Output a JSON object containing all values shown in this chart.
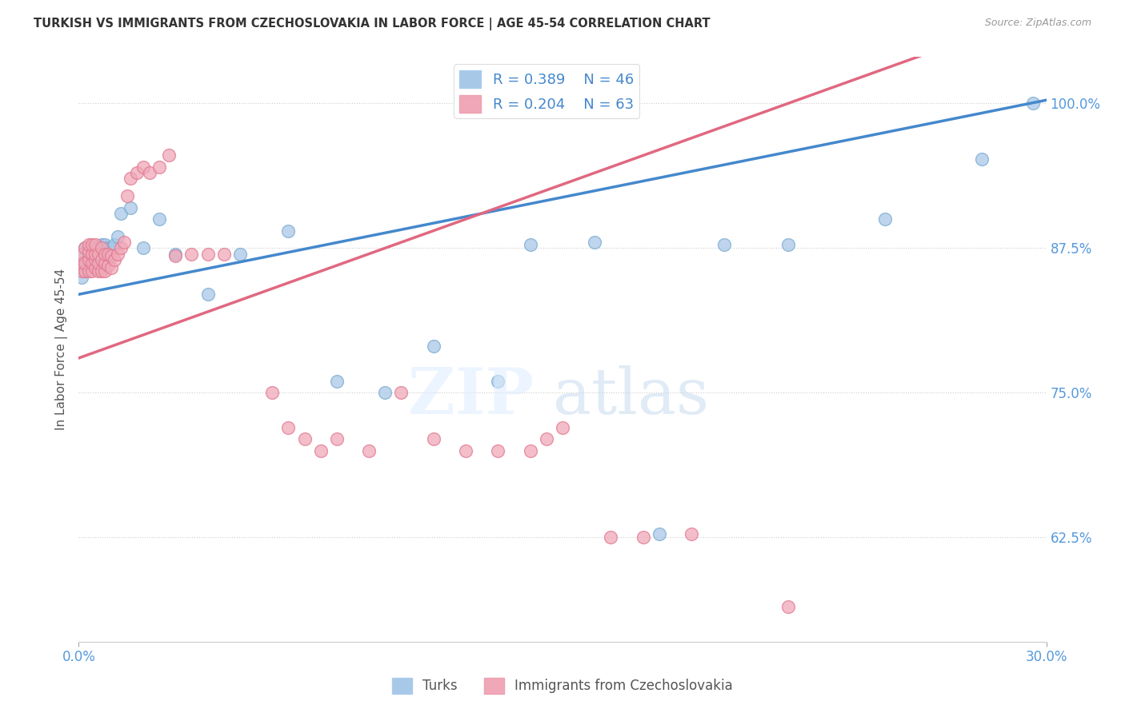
{
  "title": "TURKISH VS IMMIGRANTS FROM CZECHOSLOVAKIA IN LABOR FORCE | AGE 45-54 CORRELATION CHART",
  "source": "Source: ZipAtlas.com",
  "ylabel": "In Labor Force | Age 45-54",
  "legend_blue_label": "Turks",
  "legend_pink_label": "Immigrants from Czechoslovakia",
  "blue_R": 0.389,
  "blue_N": 46,
  "pink_R": 0.204,
  "pink_N": 63,
  "blue_color": "#a8c8e8",
  "pink_color": "#f0a8b8",
  "blue_edge_color": "#7aaad0",
  "pink_edge_color": "#e07890",
  "blue_line_color": "#4488cc",
  "pink_line_color": "#e06880",
  "xlim": [
    0.0,
    0.3
  ],
  "ylim": [
    0.535,
    1.04
  ],
  "ytick_vals": [
    0.625,
    0.75,
    0.875,
    1.0
  ],
  "ytick_labels": [
    "62.5%",
    "75.0%",
    "87.5%",
    "100.0%"
  ],
  "blue_x": [
    0.001,
    0.001,
    0.001,
    0.002,
    0.002,
    0.002,
    0.003,
    0.003,
    0.003,
    0.004,
    0.004,
    0.004,
    0.005,
    0.005,
    0.005,
    0.006,
    0.006,
    0.006,
    0.007,
    0.007,
    0.008,
    0.008,
    0.009,
    0.01,
    0.011,
    0.012,
    0.013,
    0.016,
    0.02,
    0.025,
    0.03,
    0.04,
    0.05,
    0.065,
    0.08,
    0.095,
    0.11,
    0.13,
    0.14,
    0.16,
    0.18,
    0.2,
    0.22,
    0.25,
    0.28,
    0.296
  ],
  "blue_y": [
    0.85,
    0.86,
    0.87,
    0.855,
    0.862,
    0.875,
    0.858,
    0.868,
    0.875,
    0.86,
    0.87,
    0.875,
    0.86,
    0.868,
    0.875,
    0.858,
    0.868,
    0.875,
    0.87,
    0.878,
    0.87,
    0.878,
    0.875,
    0.875,
    0.878,
    0.885,
    0.905,
    0.91,
    0.875,
    0.9,
    0.87,
    0.835,
    0.87,
    0.89,
    0.76,
    0.75,
    0.79,
    0.76,
    0.878,
    0.88,
    0.628,
    0.878,
    0.878,
    0.9,
    0.952,
    1.0
  ],
  "pink_x": [
    0.001,
    0.001,
    0.001,
    0.002,
    0.002,
    0.002,
    0.003,
    0.003,
    0.003,
    0.003,
    0.004,
    0.004,
    0.004,
    0.004,
    0.005,
    0.005,
    0.005,
    0.005,
    0.006,
    0.006,
    0.006,
    0.007,
    0.007,
    0.007,
    0.008,
    0.008,
    0.008,
    0.009,
    0.009,
    0.01,
    0.01,
    0.011,
    0.012,
    0.013,
    0.014,
    0.015,
    0.016,
    0.018,
    0.02,
    0.022,
    0.025,
    0.028,
    0.03,
    0.035,
    0.04,
    0.045,
    0.06,
    0.065,
    0.07,
    0.075,
    0.08,
    0.09,
    0.1,
    0.11,
    0.12,
    0.13,
    0.14,
    0.145,
    0.15,
    0.165,
    0.175,
    0.19,
    0.22
  ],
  "pink_y": [
    0.855,
    0.862,
    0.87,
    0.855,
    0.862,
    0.875,
    0.855,
    0.865,
    0.872,
    0.878,
    0.855,
    0.862,
    0.87,
    0.878,
    0.858,
    0.865,
    0.87,
    0.878,
    0.855,
    0.862,
    0.87,
    0.855,
    0.865,
    0.875,
    0.855,
    0.862,
    0.87,
    0.86,
    0.87,
    0.858,
    0.868,
    0.865,
    0.87,
    0.875,
    0.88,
    0.92,
    0.935,
    0.94,
    0.945,
    0.94,
    0.945,
    0.955,
    0.868,
    0.87,
    0.87,
    0.87,
    0.75,
    0.72,
    0.71,
    0.7,
    0.71,
    0.7,
    0.75,
    0.71,
    0.7,
    0.7,
    0.7,
    0.71,
    0.72,
    0.625,
    0.625,
    0.628,
    0.565
  ]
}
